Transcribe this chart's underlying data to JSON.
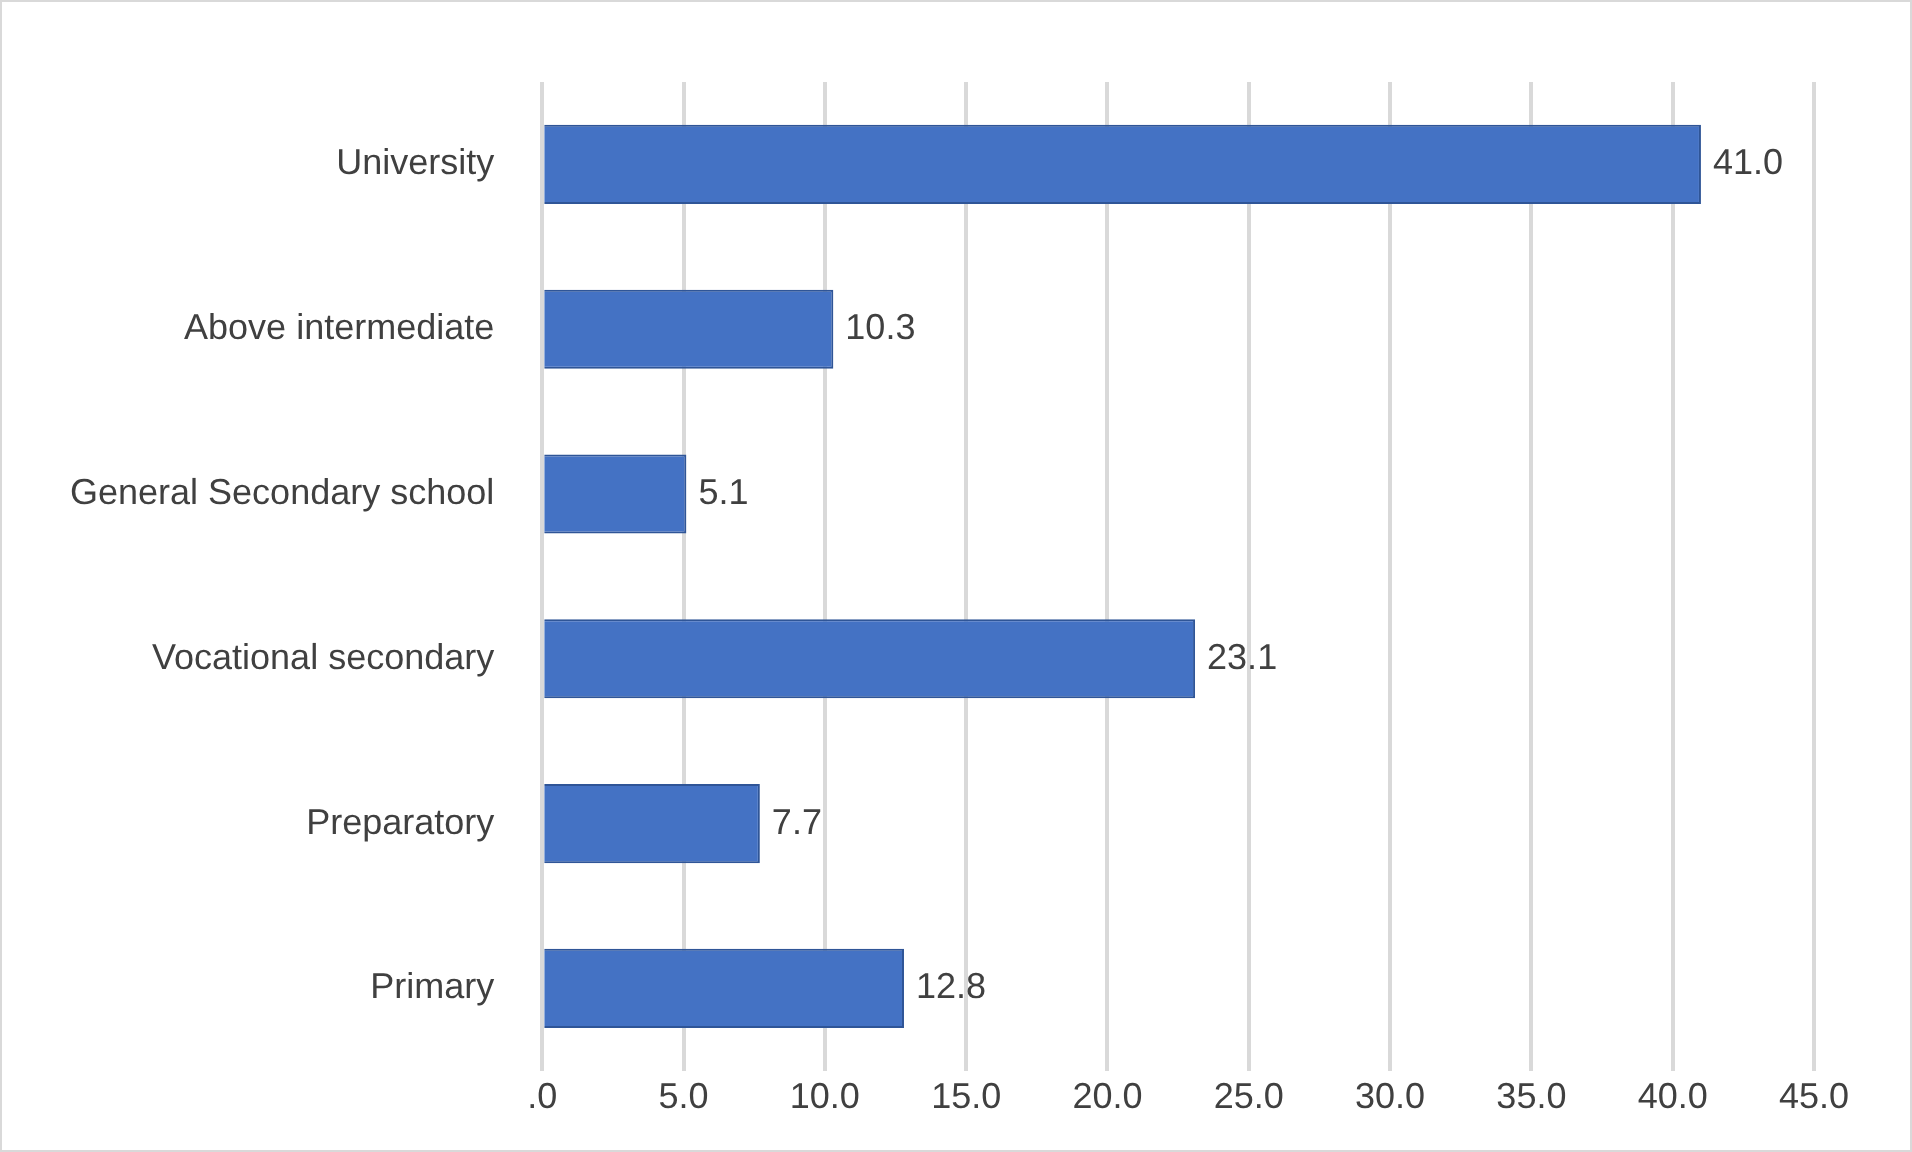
{
  "chart_data": {
    "type": "bar",
    "orientation": "horizontal",
    "categories": [
      "University",
      "Above intermediate",
      "General Secondary school",
      "Vocational secondary",
      "Preparatory",
      "Primary"
    ],
    "values": [
      41.0,
      10.3,
      5.1,
      23.1,
      7.7,
      12.8
    ],
    "value_labels": [
      "41.0",
      "10.3",
      "5.1",
      "23.1",
      "7.7",
      "12.8"
    ],
    "color": "#4472c4",
    "xlim": [
      0,
      45
    ],
    "xticks": [
      {
        "value": 0,
        "label": ".0"
      },
      {
        "value": 5,
        "label": "5.0"
      },
      {
        "value": 10,
        "label": "10.0"
      },
      {
        "value": 15,
        "label": "15.0"
      },
      {
        "value": 20,
        "label": "20.0"
      },
      {
        "value": 25,
        "label": "25.0"
      },
      {
        "value": 30,
        "label": "30.0"
      },
      {
        "value": 35,
        "label": "35.0"
      },
      {
        "value": 40,
        "label": "40.0"
      },
      {
        "value": 45,
        "label": "45.0"
      }
    ],
    "grid": "x",
    "legend": false
  }
}
